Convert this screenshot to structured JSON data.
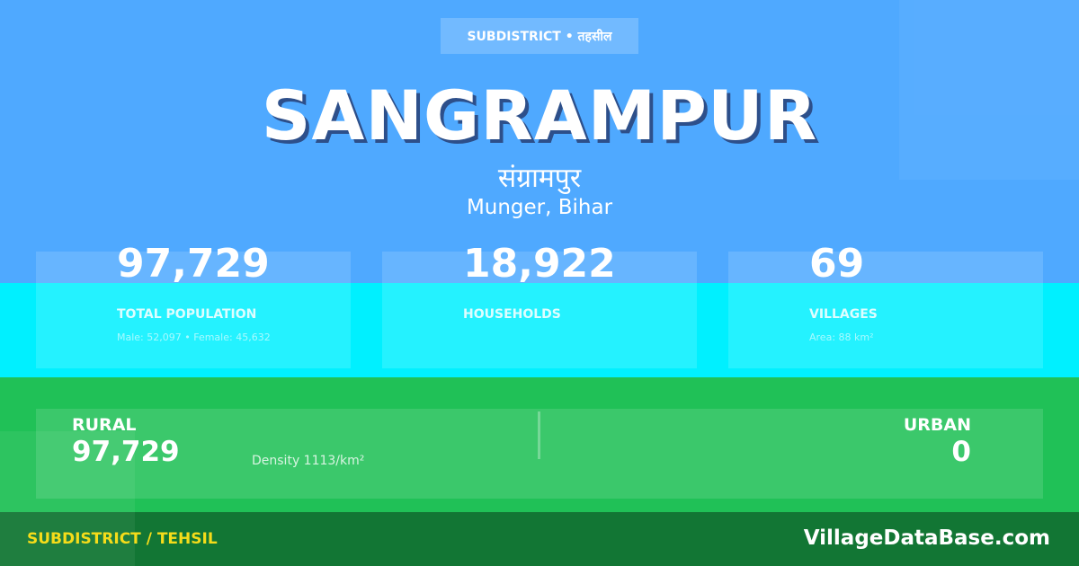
{
  "colors": {
    "top": "#4fa9ff",
    "stats": "#00f0ff",
    "rural": "#20c157",
    "footer": "#127634",
    "footer_label": "#f5dc1a"
  },
  "badge": "SUBDISTRICT • तहसील",
  "title": "SANGRAMPUR",
  "title_hindi": "संग्रामपुर",
  "location": "Munger, Bihar",
  "stats": [
    {
      "value": "97,729",
      "label": "TOTAL POPULATION",
      "sub": "Male: 52,097 • Female: 45,632"
    },
    {
      "value": "18,922",
      "label": "HOUSEHOLDS",
      "sub": ""
    },
    {
      "value": "69",
      "label": "VILLAGES",
      "sub": "Area: 88 km²"
    }
  ],
  "rural": {
    "label": "RURAL",
    "value": "97,729",
    "density": "Density 1113/km²"
  },
  "urban": {
    "label": "URBAN",
    "value": "0"
  },
  "footer": {
    "label": "SUBDISTRICT / TEHSIL",
    "brand": "VillageDataBase.com"
  }
}
